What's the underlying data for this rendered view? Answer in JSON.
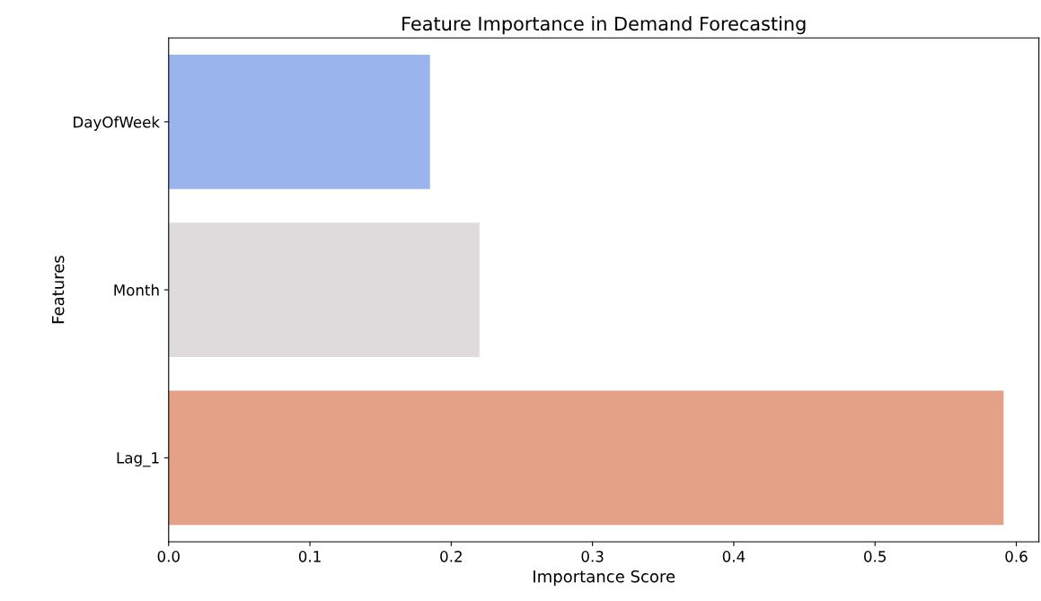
{
  "chart_data": {
    "type": "bar",
    "orientation": "horizontal",
    "title": "Feature Importance in Demand Forecasting",
    "xlabel": "Importance Score",
    "ylabel": "Features",
    "categories": [
      "DayOfWeek",
      "Month",
      "Lag_1"
    ],
    "values": [
      0.185,
      0.22,
      0.591
    ],
    "colors": [
      "#9ab4ee",
      "#dfdbdc",
      "#e5a088"
    ],
    "xlim": [
      0,
      0.616
    ],
    "xticks": [
      {
        "value": 0,
        "label": "0.0"
      },
      0.1,
      0.2,
      0.3,
      0.4,
      0.5,
      0.6
    ],
    "grid": false
  }
}
